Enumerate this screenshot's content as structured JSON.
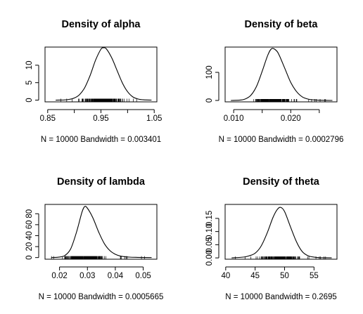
{
  "chart_data": [
    {
      "type": "line",
      "title": "Density of alpha",
      "xlabel": "N = 10000   Bandwidth = 0.003401",
      "xlim": [
        0.845,
        1.055
      ],
      "ylim": [
        -0.5,
        15.2
      ],
      "x_ticks": [
        0.85,
        0.95,
        1.05
      ],
      "x_tick_labels": [
        "0.85",
        "0.95",
        "1.05"
      ],
      "x_minor_ticks": [
        0.9,
        1.0
      ],
      "y_ticks": [
        0,
        5,
        10
      ],
      "y_tick_labels": [
        "0",
        "5",
        "10"
      ],
      "grid": false,
      "rug": {
        "from": 0.865,
        "to": 1.045
      },
      "series": [
        {
          "x": [
            0.865,
            0.88,
            0.89,
            0.9,
            0.91,
            0.92,
            0.93,
            0.94,
            0.95,
            0.955,
            0.96,
            0.97,
            0.98,
            0.99,
            1.0,
            1.01,
            1.02,
            1.03,
            1.045
          ],
          "values": [
            0,
            0.05,
            0.2,
            0.6,
            1.6,
            3.7,
            7.2,
            11.5,
            14.6,
            15.0,
            14.7,
            12.2,
            8.6,
            5.0,
            2.4,
            0.9,
            0.3,
            0.08,
            0
          ]
        }
      ]
    },
    {
      "type": "line",
      "title": "Density of beta",
      "xlabel": "N = 10000   Bandwidth = 0.0002796",
      "xlim": [
        0.0085,
        0.0281
      ],
      "ylim": [
        -5,
        190
      ],
      "x_ticks": [
        0.01,
        0.02
      ],
      "x_tick_labels": [
        "0.010",
        "0.020"
      ],
      "x_minor_ticks": [
        0.015,
        0.025
      ],
      "y_ticks": [
        0,
        100
      ],
      "y_tick_labels": [
        "0",
        "100"
      ],
      "grid": false,
      "rug": {
        "from": 0.0095,
        "to": 0.0273
      },
      "series": [
        {
          "x": [
            0.0095,
            0.011,
            0.012,
            0.013,
            0.014,
            0.015,
            0.016,
            0.0167,
            0.0175,
            0.018,
            0.019,
            0.02,
            0.021,
            0.022,
            0.023,
            0.024,
            0.026,
            0.0273
          ],
          "values": [
            0,
            1,
            5,
            18,
            50,
            104,
            162,
            185,
            177,
            160,
            112,
            64,
            32,
            13,
            5,
            2,
            0.5,
            0
          ]
        }
      ]
    },
    {
      "type": "line",
      "title": "Density of lambda",
      "xlabel": "N = 10000   Bandwidth = 0.0005665",
      "xlim": [
        0.0148,
        0.0549
      ],
      "ylim": [
        -3,
        97
      ],
      "x_ticks": [
        0.02,
        0.03,
        0.04,
        0.05
      ],
      "x_tick_labels": [
        "0.02",
        "0.03",
        "0.04",
        "0.05"
      ],
      "x_minor_ticks": [],
      "y_ticks": [
        0,
        20,
        40,
        60,
        80
      ],
      "y_tick_labels": [
        "0",
        "20",
        "40",
        "60",
        "80"
      ],
      "grid": false,
      "rug": {
        "from": 0.017,
        "to": 0.053
      },
      "series": [
        {
          "x": [
            0.017,
            0.02,
            0.022,
            0.024,
            0.026,
            0.028,
            0.029,
            0.03,
            0.032,
            0.034,
            0.036,
            0.038,
            0.04,
            0.042,
            0.045,
            0.048,
            0.053
          ],
          "values": [
            0,
            1,
            4,
            16,
            45,
            82,
            93,
            90,
            72,
            47,
            26,
            13,
            6,
            2.5,
            0.8,
            0.3,
            0
          ]
        }
      ]
    },
    {
      "type": "line",
      "title": "Density of theta",
      "xlabel": "N = 10000   Bandwidth = 0.2695",
      "xlim": [
        39.9,
        58.9
      ],
      "ylim": [
        -0.005,
        0.203
      ],
      "x_ticks": [
        40,
        45,
        50,
        55
      ],
      "x_tick_labels": [
        "40",
        "45",
        "50",
        "55"
      ],
      "x_minor_ticks": [],
      "y_ticks": [
        0.0,
        0.05,
        0.1,
        0.15
      ],
      "y_tick_labels": [
        "0.00",
        "0.05",
        "0.10",
        "0.15"
      ],
      "grid": false,
      "rug": {
        "from": 41,
        "to": 58
      },
      "series": [
        {
          "x": [
            41,
            43,
            44,
            45,
            46,
            47,
            48,
            48.7,
            49.3,
            50,
            51,
            52,
            53,
            54,
            55,
            56,
            58
          ],
          "values": [
            0,
            0.003,
            0.008,
            0.018,
            0.044,
            0.092,
            0.152,
            0.182,
            0.192,
            0.176,
            0.118,
            0.062,
            0.024,
            0.008,
            0.003,
            0.001,
            0
          ]
        }
      ]
    }
  ]
}
